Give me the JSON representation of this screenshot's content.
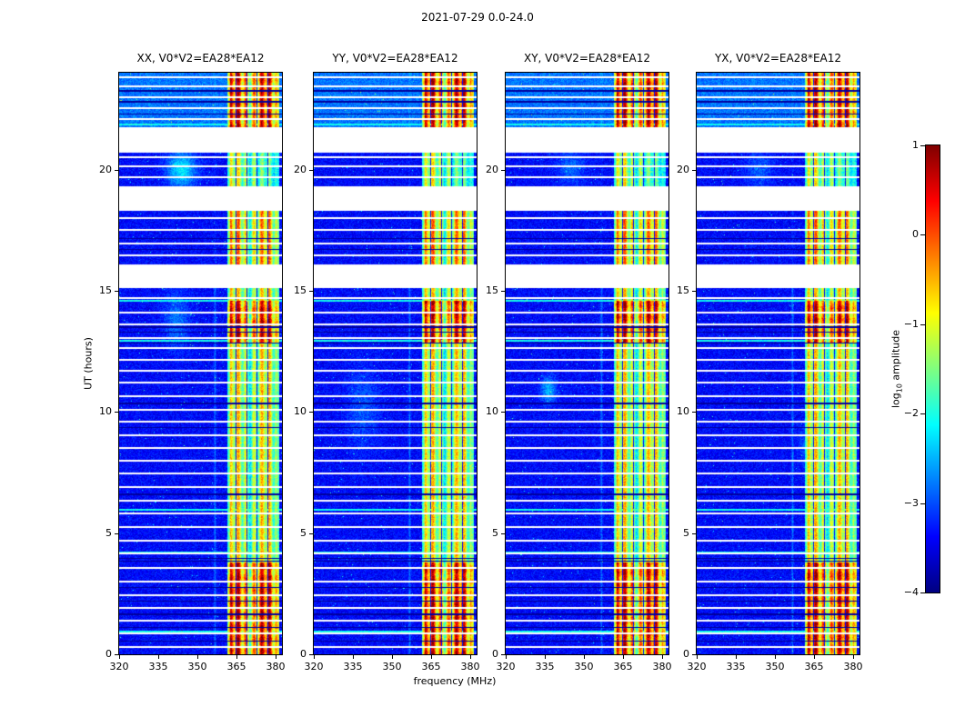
{
  "figure_title": "2021-07-29 0.0-24.0",
  "xlabel": "frequency (MHz)",
  "ylabel": "UT (hours)",
  "colorbar_label": {
    "prefix": "log",
    "sub": "10",
    "suffix": " amplitude"
  },
  "panels": [
    {
      "title": "XX, V0*V2=EA28*EA12"
    },
    {
      "title": "YY, V0*V2=EA28*EA12"
    },
    {
      "title": "XY, V0*V2=EA28*EA12"
    },
    {
      "title": "YX, V0*V2=EA28*EA12"
    }
  ],
  "chart_data": {
    "type": "heatmap",
    "title": "2021-07-29 0.0-24.0",
    "subtitle": "",
    "xlabel": "frequency (MHz)",
    "ylabel": "UT (hours)",
    "xlim": [
      320,
      382.5
    ],
    "ylim": [
      0,
      24
    ],
    "x_ticks": [
      320,
      335,
      350,
      365,
      380
    ],
    "y_ticks": [
      0,
      5,
      10,
      15,
      20
    ],
    "panels": [
      "XX, V0*V2=EA28*EA12",
      "YY, V0*V2=EA28*EA12",
      "XY, V0*V2=EA28*EA12",
      "YX, V0*V2=EA28*EA12"
    ],
    "colorbar": {
      "label": "log10 amplitude",
      "ticks": [
        1,
        0,
        -1,
        -2,
        -3,
        -4
      ],
      "range": [
        -4,
        1
      ],
      "colormap": "jet"
    },
    "features": {
      "noise_floor_log10": -3.35,
      "rfi_band_mhz": [
        361.5,
        381.5
      ],
      "rfi_dark_lines_mhz": [
        364.9,
        368.95,
        373.0,
        377.05
      ],
      "faint_line_mhz": 356.8,
      "data_gaps_ut": [
        [
          15.1,
          16.1
        ],
        [
          18.3,
          19.3
        ],
        [
          20.7,
          21.75
        ]
      ],
      "strong_rfi_ut": [
        [
          0.0,
          3.8
        ],
        [
          12.85,
          14.6
        ],
        [
          21.75,
          24.0
        ]
      ],
      "medium_rfi_ut": [
        [
          16.1,
          18.3
        ]
      ],
      "weak_rfi_ut": [
        [
          19.3,
          20.7
        ]
      ],
      "scan_gap_lines_ut": [
        0.3,
        0.85,
        1.4,
        1.9,
        2.45,
        3.0,
        3.55,
        4.15,
        4.7,
        5.25,
        5.8,
        6.35,
        6.9,
        7.45,
        8.0,
        8.5,
        9.05,
        9.6,
        10.1,
        10.65,
        11.2,
        11.7,
        12.15,
        12.65,
        13.05,
        13.6,
        14.1,
        14.7,
        16.45,
        16.95,
        17.5,
        18.0,
        19.7,
        20.15,
        20.5,
        22.1,
        22.55,
        23.0,
        23.45,
        23.8
      ],
      "dark_lines_ut": [
        0.55,
        1.1,
        1.65,
        2.2,
        2.75,
        3.85,
        3.95,
        6.6,
        9.35,
        10.35,
        12.85,
        13.3,
        13.5,
        16.7,
        17.15,
        22.3,
        22.8,
        23.25
      ],
      "bright_lines_ut": [
        0.95,
        4.2,
        5.95,
        12.95,
        14.6,
        21.85
      ],
      "ionospheric_patches": [
        {
          "panel": 0,
          "mhz": 344,
          "ut": 20.0,
          "w_mhz": 5.5,
          "w_ut": 0.75,
          "amp": 1.15
        },
        {
          "panel": 0,
          "mhz": 342,
          "ut": 13.8,
          "w_mhz": 4.5,
          "w_ut": 1.2,
          "amp": 0.55
        },
        {
          "panel": 1,
          "mhz": 339,
          "ut": 10.2,
          "w_mhz": 6,
          "w_ut": 1.6,
          "amp": 0.4
        },
        {
          "panel": 2,
          "mhz": 336.5,
          "ut": 10.9,
          "w_mhz": 2.8,
          "w_ut": 0.55,
          "amp": 0.85
        },
        {
          "panel": 2,
          "mhz": 345,
          "ut": 20.1,
          "w_mhz": 5,
          "w_ut": 0.7,
          "amp": 0.5
        },
        {
          "panel": 3,
          "mhz": 344,
          "ut": 20.0,
          "w_mhz": 5,
          "w_ut": 0.7,
          "amp": 0.45
        },
        {
          "panel": 3,
          "mhz": 362,
          "ut": 8.6,
          "w_mhz": 3,
          "w_ut": 0.8,
          "amp": 0.4
        }
      ]
    }
  }
}
